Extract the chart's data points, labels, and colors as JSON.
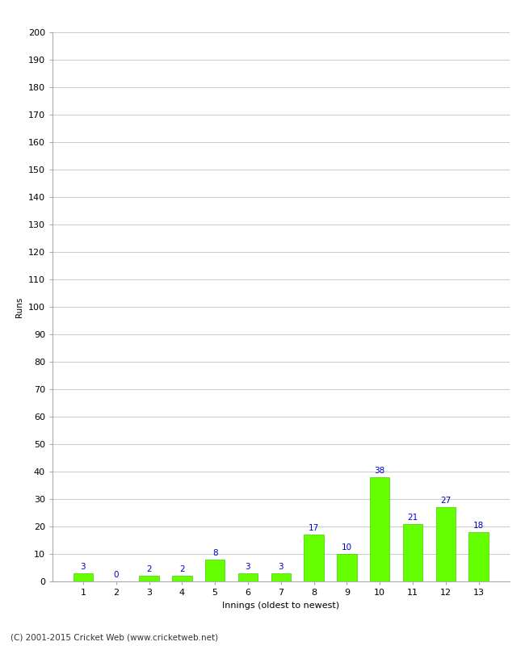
{
  "categories": [
    "1",
    "2",
    "3",
    "4",
    "5",
    "6",
    "7",
    "8",
    "9",
    "10",
    "11",
    "12",
    "13"
  ],
  "values": [
    3,
    0,
    2,
    2,
    8,
    3,
    3,
    17,
    10,
    38,
    21,
    27,
    18
  ],
  "bar_color": "#66ff00",
  "bar_edge_color": "#44cc00",
  "label_color": "#0000cc",
  "ylabel": "Runs",
  "xlabel": "Innings (oldest to newest)",
  "ylim": [
    0,
    200
  ],
  "yticks": [
    0,
    10,
    20,
    30,
    40,
    50,
    60,
    70,
    80,
    90,
    100,
    110,
    120,
    130,
    140,
    150,
    160,
    170,
    180,
    190,
    200
  ],
  "grid_color": "#cccccc",
  "bg_color": "#ffffff",
  "footer": "(C) 2001-2015 Cricket Web (www.cricketweb.net)",
  "label_fontsize": 7.5,
  "axis_fontsize": 8,
  "ylabel_fontsize": 7.5,
  "footer_fontsize": 7.5
}
